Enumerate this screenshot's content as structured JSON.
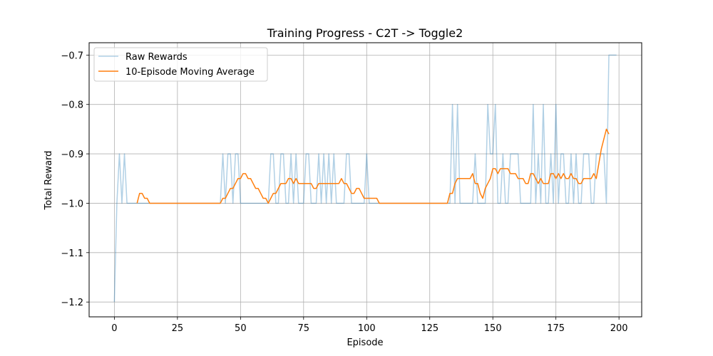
{
  "chart_data": {
    "type": "line",
    "title": "Training Progress - C2T -> Toggle2",
    "xlabel": "Episode",
    "ylabel": "Total Reward",
    "xlim": [
      -10,
      209
    ],
    "ylim": [
      -1.23,
      -0.675
    ],
    "xticks": [
      0,
      25,
      50,
      75,
      100,
      125,
      150,
      175,
      200
    ],
    "yticks": [
      -1.2,
      -1.1,
      -1.0,
      -0.9,
      -0.8,
      -0.7
    ],
    "ytick_labels": [
      "−1.2",
      "−1.1",
      "−1.0",
      "−0.9",
      "−0.8",
      "−0.7"
    ],
    "grid": true,
    "legend_position": "top-left",
    "colors": {
      "raw": "#1f77b4",
      "avg": "#ff7f0e"
    },
    "series": [
      {
        "name": "Raw Rewards",
        "x_start": 0,
        "values": [
          -1.2,
          -1.0,
          -0.9,
          -1.0,
          -0.9,
          -1.0,
          -1.0,
          -1.0,
          -1.0,
          -1.0,
          -1.0,
          -1.0,
          -1.0,
          -1.0,
          -1.0,
          -1.0,
          -1.0,
          -1.0,
          -1.0,
          -1.0,
          -1.0,
          -1.0,
          -1.0,
          -1.0,
          -1.0,
          -1.0,
          -1.0,
          -1.0,
          -1.0,
          -1.0,
          -1.0,
          -1.0,
          -1.0,
          -1.0,
          -1.0,
          -1.0,
          -1.0,
          -1.0,
          -1.0,
          -1.0,
          -1.0,
          -1.0,
          -1.0,
          -0.9,
          -1.0,
          -0.9,
          -0.9,
          -1.0,
          -0.9,
          -0.9,
          -1.0,
          -1.0,
          -1.0,
          -1.0,
          -1.0,
          -1.0,
          -1.0,
          -1.0,
          -1.0,
          -1.0,
          -1.0,
          -1.0,
          -0.9,
          -0.9,
          -1.0,
          -1.0,
          -0.9,
          -0.9,
          -1.0,
          -1.0,
          -0.9,
          -1.0,
          -0.9,
          -1.0,
          -1.0,
          -1.0,
          -0.9,
          -0.9,
          -1.0,
          -1.0,
          -1.0,
          -0.9,
          -1.0,
          -0.9,
          -1.0,
          -0.9,
          -1.0,
          -0.9,
          -1.0,
          -1.0,
          -1.0,
          -1.0,
          -0.9,
          -0.9,
          -1.0,
          -1.0,
          -1.0,
          -1.0,
          -1.0,
          -1.0,
          -0.9,
          -1.0,
          -1.0,
          -1.0,
          -1.0,
          -1.0,
          -1.0,
          -1.0,
          -1.0,
          -1.0,
          -1.0,
          -1.0,
          -1.0,
          -1.0,
          -1.0,
          -1.0,
          -1.0,
          -1.0,
          -1.0,
          -1.0,
          -1.0,
          -1.0,
          -1.0,
          -1.0,
          -1.0,
          -1.0,
          -1.0,
          -1.0,
          -1.0,
          -1.0,
          -1.0,
          -1.0,
          -1.0,
          -1.0,
          -0.8,
          -1.0,
          -0.8,
          -1.0,
          -1.0,
          -1.0,
          -1.0,
          -1.0,
          -1.0,
          -0.9,
          -1.0,
          -1.0,
          -1.0,
          -1.0,
          -0.8,
          -0.9,
          -0.9,
          -0.8,
          -1.0,
          -1.0,
          -0.9,
          -1.0,
          -1.0,
          -0.9,
          -0.9,
          -0.9,
          -0.9,
          -1.0,
          -1.0,
          -1.0,
          -1.0,
          -1.0,
          -0.8,
          -1.0,
          -0.9,
          -1.0,
          -0.8,
          -1.0,
          -1.0,
          -0.9,
          -1.0,
          -0.8,
          -1.0,
          -0.9,
          -0.9,
          -1.0,
          -1.0,
          -0.9,
          -1.0,
          -0.9,
          -1.0,
          -1.0,
          -0.9,
          -0.9,
          -0.9,
          -1.0,
          -1.0,
          -0.9,
          -0.9,
          -0.9,
          -0.9,
          -1.0,
          -0.7,
          -0.7,
          -0.7,
          -0.7
        ]
      },
      {
        "name": "10-Episode Moving Average",
        "x_start": 9,
        "values": [
          -1.0,
          -0.98,
          -0.98,
          -0.99,
          -0.99,
          -1.0,
          -1.0,
          -1.0,
          -1.0,
          -1.0,
          -1.0,
          -1.0,
          -1.0,
          -1.0,
          -1.0,
          -1.0,
          -1.0,
          -1.0,
          -1.0,
          -1.0,
          -1.0,
          -1.0,
          -1.0,
          -1.0,
          -1.0,
          -1.0,
          -1.0,
          -1.0,
          -1.0,
          -1.0,
          -1.0,
          -1.0,
          -1.0,
          -1.0,
          -0.99,
          -0.99,
          -0.98,
          -0.97,
          -0.97,
          -0.96,
          -0.95,
          -0.95,
          -0.94,
          -0.94,
          -0.95,
          -0.95,
          -0.96,
          -0.97,
          -0.97,
          -0.98,
          -0.99,
          -0.99,
          -1.0,
          -0.99,
          -0.98,
          -0.98,
          -0.97,
          -0.96,
          -0.96,
          -0.96,
          -0.95,
          -0.95,
          -0.96,
          -0.95,
          -0.96,
          -0.96,
          -0.96,
          -0.96,
          -0.96,
          -0.96,
          -0.97,
          -0.97,
          -0.96,
          -0.96,
          -0.96,
          -0.96,
          -0.96,
          -0.96,
          -0.96,
          -0.96,
          -0.96,
          -0.95,
          -0.96,
          -0.96,
          -0.97,
          -0.98,
          -0.98,
          -0.97,
          -0.97,
          -0.98,
          -0.99,
          -0.99,
          -0.99,
          -0.99,
          -0.99,
          -0.99,
          -1.0,
          -1.0,
          -1.0,
          -1.0,
          -1.0,
          -1.0,
          -1.0,
          -1.0,
          -1.0,
          -1.0,
          -1.0,
          -1.0,
          -1.0,
          -1.0,
          -1.0,
          -1.0,
          -1.0,
          -1.0,
          -1.0,
          -1.0,
          -1.0,
          -1.0,
          -1.0,
          -1.0,
          -1.0,
          -1.0,
          -1.0,
          -1.0,
          -0.98,
          -0.98,
          -0.96,
          -0.95,
          -0.95,
          -0.95,
          -0.95,
          -0.95,
          -0.95,
          -0.94,
          -0.96,
          -0.96,
          -0.98,
          -0.99,
          -0.97,
          -0.96,
          -0.95,
          -0.93,
          -0.93,
          -0.94,
          -0.93,
          -0.93,
          -0.93,
          -0.93,
          -0.94,
          -0.94,
          -0.94,
          -0.95,
          -0.95,
          -0.95,
          -0.96,
          -0.96,
          -0.94,
          -0.94,
          -0.95,
          -0.96,
          -0.95,
          -0.96,
          -0.96,
          -0.96,
          -0.94,
          -0.94,
          -0.95,
          -0.94,
          -0.95,
          -0.94,
          -0.95,
          -0.95,
          -0.94,
          -0.95,
          -0.95,
          -0.96,
          -0.96,
          -0.95,
          -0.95,
          -0.95,
          -0.95,
          -0.94,
          -0.95,
          -0.92,
          -0.89,
          -0.87,
          -0.85,
          -0.86
        ]
      }
    ]
  }
}
